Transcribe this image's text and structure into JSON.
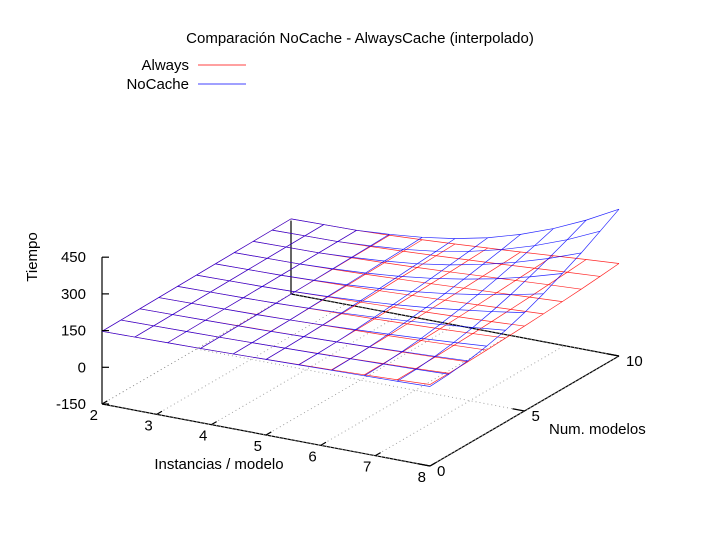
{
  "chart_data": {
    "type": "surface",
    "title": "Comparación NoCache - AlwaysCache (interpolado)",
    "zlabel": "Tiempo",
    "xlabel": "Instancias / modelo",
    "ylabel": "Num. modelos",
    "x_ticks": [
      "2",
      "3",
      "4",
      "5",
      "6",
      "7",
      "8"
    ],
    "y_ticks": [
      "0",
      "5",
      "10"
    ],
    "z_ticks": [
      "450",
      "300",
      "150",
      "0",
      "-150"
    ],
    "xlim": [
      2,
      8
    ],
    "ylim": [
      0,
      10
    ],
    "zlim": [
      -150,
      450
    ],
    "legend_placement": "top-left",
    "x": [
      2,
      2.6,
      3.2,
      3.8,
      4.4,
      5,
      5.6,
      6.2,
      6.8,
      7.4,
      8
    ],
    "y": [
      0,
      1,
      2,
      3,
      4,
      5,
      6,
      7,
      8,
      9,
      10
    ],
    "series": [
      {
        "name": "Always",
        "color": "#ff0000",
        "z": [
          [
            147,
            149,
            151,
            153,
            156,
            159,
            163,
            167,
            172,
            177,
            183
          ],
          [
            148,
            150,
            152,
            154,
            157,
            160,
            164,
            168,
            173,
            178,
            184
          ],
          [
            149,
            151,
            153,
            156,
            159,
            162,
            166,
            170,
            175,
            180,
            186
          ],
          [
            150,
            152,
            154,
            157,
            160,
            164,
            168,
            172,
            177,
            183,
            189
          ],
          [
            151,
            153,
            155,
            158,
            162,
            166,
            170,
            175,
            180,
            186,
            193
          ],
          [
            152,
            154,
            156,
            160,
            164,
            168,
            173,
            178,
            184,
            190,
            197
          ],
          [
            153,
            155,
            157,
            161,
            165,
            170,
            176,
            182,
            188,
            195,
            202
          ],
          [
            154,
            156,
            158,
            162,
            167,
            173,
            179,
            186,
            193,
            200,
            207
          ],
          [
            155,
            157,
            159,
            164,
            169,
            175,
            182,
            190,
            198,
            206,
            213
          ],
          [
            156,
            158,
            160,
            165,
            171,
            178,
            186,
            194,
            203,
            212,
            220
          ],
          [
            157,
            159,
            161,
            166,
            173,
            181,
            190,
            199,
            209,
            219,
            228
          ]
        ]
      },
      {
        "name": "NoCache",
        "color": "#0000ff",
        "z": [
          [
            147,
            149,
            151,
            153,
            156,
            159,
            162,
            165,
            168,
            171,
            175
          ],
          [
            148,
            150,
            152,
            154,
            157,
            160,
            163,
            167,
            171,
            175,
            180
          ],
          [
            149,
            151,
            153,
            155,
            158,
            162,
            166,
            171,
            177,
            183,
            190
          ],
          [
            150,
            152,
            154,
            156,
            160,
            165,
            171,
            178,
            186,
            195,
            205
          ],
          [
            151,
            153,
            155,
            158,
            163,
            169,
            177,
            187,
            198,
            211,
            225
          ],
          [
            152,
            154,
            156,
            160,
            166,
            174,
            184,
            197,
            213,
            231,
            252
          ],
          [
            153,
            155,
            157,
            162,
            169,
            179,
            192,
            209,
            230,
            255,
            284
          ],
          [
            154,
            156,
            158,
            164,
            172,
            184,
            201,
            223,
            250,
            283,
            322
          ],
          [
            155,
            157,
            159,
            166,
            176,
            190,
            211,
            238,
            272,
            313,
            361
          ],
          [
            156,
            158,
            160,
            168,
            179,
            196,
            221,
            254,
            295,
            345,
            405
          ],
          [
            157,
            159,
            161,
            170,
            183,
            203,
            232,
            271,
            320,
            380,
            450
          ]
        ]
      }
    ]
  }
}
